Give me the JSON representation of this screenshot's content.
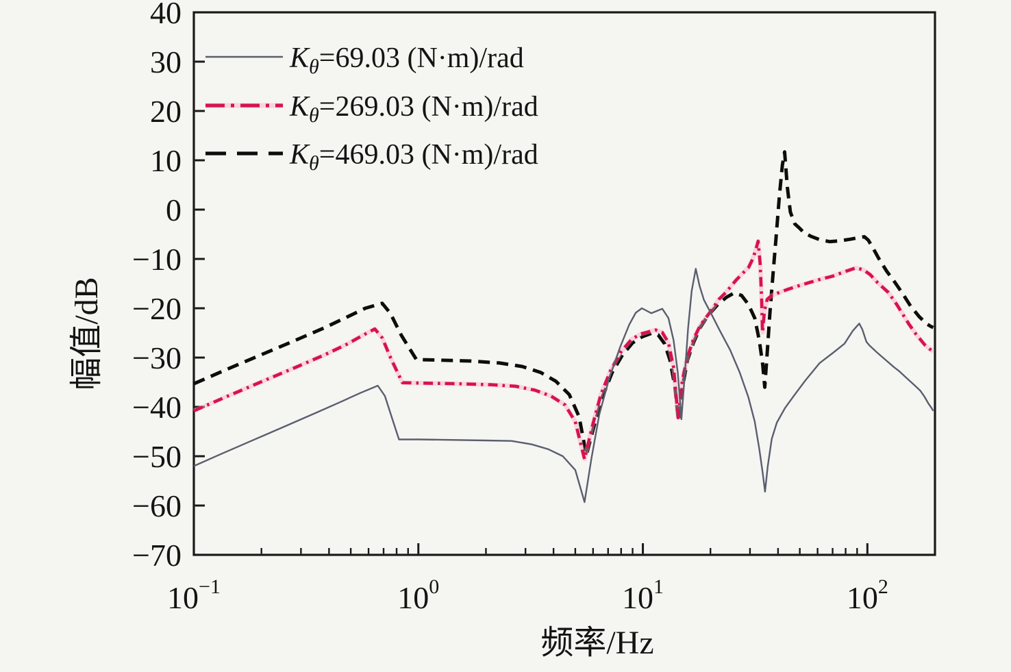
{
  "figure": {
    "background": "#f5f5f2",
    "frame_color": "#1a1a1a"
  },
  "axes": {
    "x": {
      "label": "频率/Hz",
      "scale": "log",
      "min": 0.1,
      "max": 200,
      "ticks": [
        {
          "base": "10",
          "exp": "−1",
          "value": 0.1
        },
        {
          "base": "10",
          "exp": "0",
          "value": 1
        },
        {
          "base": "10",
          "exp": "1",
          "value": 10
        },
        {
          "base": "10",
          "exp": "2",
          "value": 100
        }
      ]
    },
    "y": {
      "label": "幅值/dB",
      "min": -70,
      "max": 40,
      "tick_step": 10,
      "ticks": [
        40,
        30,
        20,
        10,
        0,
        -10,
        -20,
        -30,
        -40,
        -50,
        -60,
        -70
      ]
    }
  },
  "legend": {
    "entries": [
      {
        "symbol": "K",
        "subscript": "θ",
        "rest": "=69.03 (N·m)/rad",
        "line_style": "solid",
        "color": "#5a5e6d"
      },
      {
        "symbol": "K",
        "subscript": "θ",
        "rest": "=269.03 (N·m)/rad",
        "line_style": "dash-dot",
        "color": "#d6134e"
      },
      {
        "symbol": "K",
        "subscript": "θ",
        "rest": "=469.03 (N·m)/rad",
        "line_style": "dashed",
        "color": "#0d0d0d"
      }
    ]
  },
  "chart_data": {
    "type": "line",
    "x_unit": "Hz",
    "y_unit": "dB",
    "xlim": [
      0.1,
      200
    ],
    "ylim": [
      -70,
      40
    ],
    "grid": false,
    "legend_position": "upper-left",
    "series": [
      {
        "name": "Kθ=69.03 (N·m)/rad",
        "style": "solid",
        "color": "#5a5e6d",
        "width": 2.4,
        "points": [
          [
            0.1,
            -52
          ],
          [
            0.13,
            -49.7
          ],
          [
            0.18,
            -46.9
          ],
          [
            0.25,
            -44.1
          ],
          [
            0.35,
            -41.2
          ],
          [
            0.45,
            -39.0
          ],
          [
            0.55,
            -37.2
          ],
          [
            0.66,
            -35.7
          ],
          [
            0.71,
            -37.8
          ],
          [
            0.76,
            -42.0
          ],
          [
            0.82,
            -46.6
          ],
          [
            1.0,
            -46.6
          ],
          [
            1.4,
            -46.7
          ],
          [
            2.0,
            -46.8
          ],
          [
            2.6,
            -46.9
          ],
          [
            3.2,
            -47.6
          ],
          [
            3.8,
            -48.6
          ],
          [
            4.4,
            -50.0
          ],
          [
            5.0,
            -52.8
          ],
          [
            5.5,
            -59.3
          ],
          [
            5.9,
            -50.5
          ],
          [
            6.4,
            -41.5
          ],
          [
            7.1,
            -34.0
          ],
          [
            7.9,
            -28.0
          ],
          [
            8.7,
            -23.3
          ],
          [
            9.3,
            -20.9
          ],
          [
            9.9,
            -20.0
          ],
          [
            10.9,
            -21.0
          ],
          [
            12.2,
            -20.1
          ],
          [
            13.0,
            -22.0
          ],
          [
            13.7,
            -26.5
          ],
          [
            14.3,
            -33.0
          ],
          [
            14.85,
            -42.5
          ],
          [
            15.4,
            -33.0
          ],
          [
            15.9,
            -24.0
          ],
          [
            16.5,
            -16.5
          ],
          [
            17.2,
            -12.0
          ],
          [
            17.9,
            -15.5
          ],
          [
            18.7,
            -18.3
          ],
          [
            20.1,
            -21.0
          ],
          [
            22.0,
            -24.5
          ],
          [
            24.5,
            -28.5
          ],
          [
            27.0,
            -33.0
          ],
          [
            29.5,
            -38.0
          ],
          [
            31.5,
            -43.0
          ],
          [
            33.0,
            -48.5
          ],
          [
            34.2,
            -53.5
          ],
          [
            35.0,
            -57.2
          ],
          [
            36.0,
            -52.0
          ],
          [
            37.5,
            -46.5
          ],
          [
            39.5,
            -43.2
          ],
          [
            43.0,
            -40.2
          ],
          [
            47.3,
            -37.6
          ],
          [
            53.0,
            -34.6
          ],
          [
            61.3,
            -31.1
          ],
          [
            70.0,
            -29.1
          ],
          [
            79.0,
            -27.2
          ],
          [
            86.0,
            -24.6
          ],
          [
            92.0,
            -23.1
          ],
          [
            95.0,
            -24.3
          ],
          [
            99.0,
            -26.8
          ],
          [
            102.0,
            -27.5
          ],
          [
            110.0,
            -28.9
          ],
          [
            120.0,
            -30.4
          ],
          [
            131.0,
            -31.9
          ],
          [
            139.0,
            -32.8
          ],
          [
            150.0,
            -34.2
          ],
          [
            162.0,
            -35.6
          ],
          [
            172.0,
            -36.7
          ],
          [
            180.0,
            -38.0
          ],
          [
            187.0,
            -39.3
          ],
          [
            193.0,
            -40.2
          ],
          [
            196.5,
            -40.8
          ]
        ]
      },
      {
        "name": "Kθ=269.03 (N·m)/rad",
        "style": "dash-dot",
        "color": "#d6134e",
        "width": 4.6,
        "points": [
          [
            0.1,
            -40.8
          ],
          [
            0.14,
            -37.9
          ],
          [
            0.2,
            -34.9
          ],
          [
            0.28,
            -32.1
          ],
          [
            0.38,
            -29.5
          ],
          [
            0.48,
            -27.3
          ],
          [
            0.56,
            -25.6
          ],
          [
            0.64,
            -24.2
          ],
          [
            0.69,
            -26.0
          ],
          [
            0.76,
            -30.5
          ],
          [
            0.85,
            -35.1
          ],
          [
            1.1,
            -35.2
          ],
          [
            1.5,
            -35.3
          ],
          [
            2.1,
            -35.5
          ],
          [
            2.7,
            -35.8
          ],
          [
            3.3,
            -36.6
          ],
          [
            3.9,
            -37.8
          ],
          [
            4.5,
            -39.6
          ],
          [
            5.0,
            -43.0
          ],
          [
            5.5,
            -50.6
          ],
          [
            5.95,
            -44.0
          ],
          [
            6.5,
            -37.5
          ],
          [
            7.2,
            -32.5
          ],
          [
            8.0,
            -28.8
          ],
          [
            8.9,
            -26.3
          ],
          [
            9.8,
            -25.2
          ],
          [
            11.4,
            -24.4
          ],
          [
            12.2,
            -24.9
          ],
          [
            13.0,
            -27.0
          ],
          [
            13.7,
            -32.0
          ],
          [
            14.35,
            -42.2
          ],
          [
            15.0,
            -34.5
          ],
          [
            15.8,
            -29.8
          ],
          [
            16.8,
            -26.3
          ],
          [
            18.0,
            -23.5
          ],
          [
            20.0,
            -20.7
          ],
          [
            21.8,
            -18.2
          ],
          [
            23.4,
            -16.8
          ],
          [
            26.0,
            -14.3
          ],
          [
            28.0,
            -12.8
          ],
          [
            29.6,
            -11.7
          ],
          [
            31.0,
            -9.8
          ],
          [
            32.0,
            -7.8
          ],
          [
            32.6,
            -6.4
          ],
          [
            33.3,
            -11.0
          ],
          [
            33.8,
            -18.0
          ],
          [
            34.1,
            -24.9
          ],
          [
            34.8,
            -20.5
          ],
          [
            35.8,
            -18.2
          ],
          [
            37.5,
            -17.4
          ],
          [
            40.0,
            -16.9
          ],
          [
            44.0,
            -16.2
          ],
          [
            49.0,
            -15.5
          ],
          [
            55.0,
            -14.8
          ],
          [
            62.0,
            -14.1
          ],
          [
            70.0,
            -13.5
          ],
          [
            78.0,
            -12.7
          ],
          [
            84.0,
            -12.2
          ],
          [
            89.0,
            -11.8
          ],
          [
            96.0,
            -12.2
          ],
          [
            103.0,
            -13.2
          ],
          [
            111.0,
            -14.8
          ],
          [
            124.0,
            -16.8
          ],
          [
            135.0,
            -19.2
          ],
          [
            153.0,
            -23.2
          ],
          [
            165.0,
            -25.3
          ],
          [
            180.0,
            -27.4
          ],
          [
            190.0,
            -28.3
          ],
          [
            196.5,
            -28.8
          ]
        ]
      },
      {
        "name": "Kθ=469.03 (N·m)/rad",
        "style": "dashed",
        "color": "#0d0d0d",
        "width": 5.0,
        "points": [
          [
            0.1,
            -35.3
          ],
          [
            0.14,
            -32.4
          ],
          [
            0.2,
            -29.4
          ],
          [
            0.28,
            -26.6
          ],
          [
            0.38,
            -24.0
          ],
          [
            0.48,
            -21.8
          ],
          [
            0.58,
            -20.0
          ],
          [
            0.69,
            -19.0
          ],
          [
            0.75,
            -21.0
          ],
          [
            0.84,
            -25.5
          ],
          [
            0.98,
            -30.4
          ],
          [
            1.2,
            -30.5
          ],
          [
            1.7,
            -30.7
          ],
          [
            2.3,
            -31.1
          ],
          [
            2.9,
            -31.8
          ],
          [
            3.5,
            -33.0
          ],
          [
            4.1,
            -34.8
          ],
          [
            4.7,
            -37.5
          ],
          [
            5.2,
            -42.0
          ],
          [
            5.6,
            -49.8
          ],
          [
            6.05,
            -44.0
          ],
          [
            6.6,
            -38.0
          ],
          [
            7.3,
            -33.0
          ],
          [
            8.1,
            -29.5
          ],
          [
            9.0,
            -27.0
          ],
          [
            9.9,
            -25.8
          ],
          [
            10.9,
            -25.1
          ],
          [
            11.7,
            -25.4
          ],
          [
            12.5,
            -27.2
          ],
          [
            13.2,
            -30.5
          ],
          [
            13.9,
            -36.0
          ],
          [
            14.4,
            -42.8
          ],
          [
            15.0,
            -36.0
          ],
          [
            15.8,
            -30.5
          ],
          [
            16.8,
            -27.0
          ],
          [
            18.0,
            -23.9
          ],
          [
            19.5,
            -21.5
          ],
          [
            21.5,
            -19.3
          ],
          [
            23.5,
            -17.8
          ],
          [
            25.5,
            -16.9
          ],
          [
            27.5,
            -17.4
          ],
          [
            29.5,
            -19.2
          ],
          [
            31.5,
            -22.0
          ],
          [
            33.0,
            -26.5
          ],
          [
            34.2,
            -31.5
          ],
          [
            34.9,
            -36.0
          ],
          [
            35.8,
            -29.0
          ],
          [
            36.8,
            -21.0
          ],
          [
            38.0,
            -13.0
          ],
          [
            39.3,
            -5.0
          ],
          [
            40.6,
            3.0
          ],
          [
            41.8,
            9.0
          ],
          [
            42.8,
            11.7
          ],
          [
            44.0,
            4.5
          ],
          [
            45.4,
            -0.5
          ],
          [
            47.5,
            -2.9
          ],
          [
            49.7,
            -3.7
          ],
          [
            52.0,
            -4.6
          ],
          [
            56.0,
            -5.4
          ],
          [
            61.3,
            -6.1
          ],
          [
            68.0,
            -6.5
          ],
          [
            76.0,
            -6.3
          ],
          [
            84.0,
            -6.0
          ],
          [
            91.0,
            -5.7
          ],
          [
            97.0,
            -5.5
          ],
          [
            101.0,
            -6.2
          ],
          [
            106.0,
            -7.8
          ],
          [
            112.0,
            -9.8
          ],
          [
            122.0,
            -12.5
          ],
          [
            131.0,
            -14.4
          ],
          [
            143.0,
            -16.9
          ],
          [
            156.0,
            -19.6
          ],
          [
            170.0,
            -21.7
          ],
          [
            184.0,
            -23.2
          ],
          [
            192.0,
            -23.7
          ],
          [
            196.5,
            -23.9
          ]
        ]
      }
    ]
  }
}
